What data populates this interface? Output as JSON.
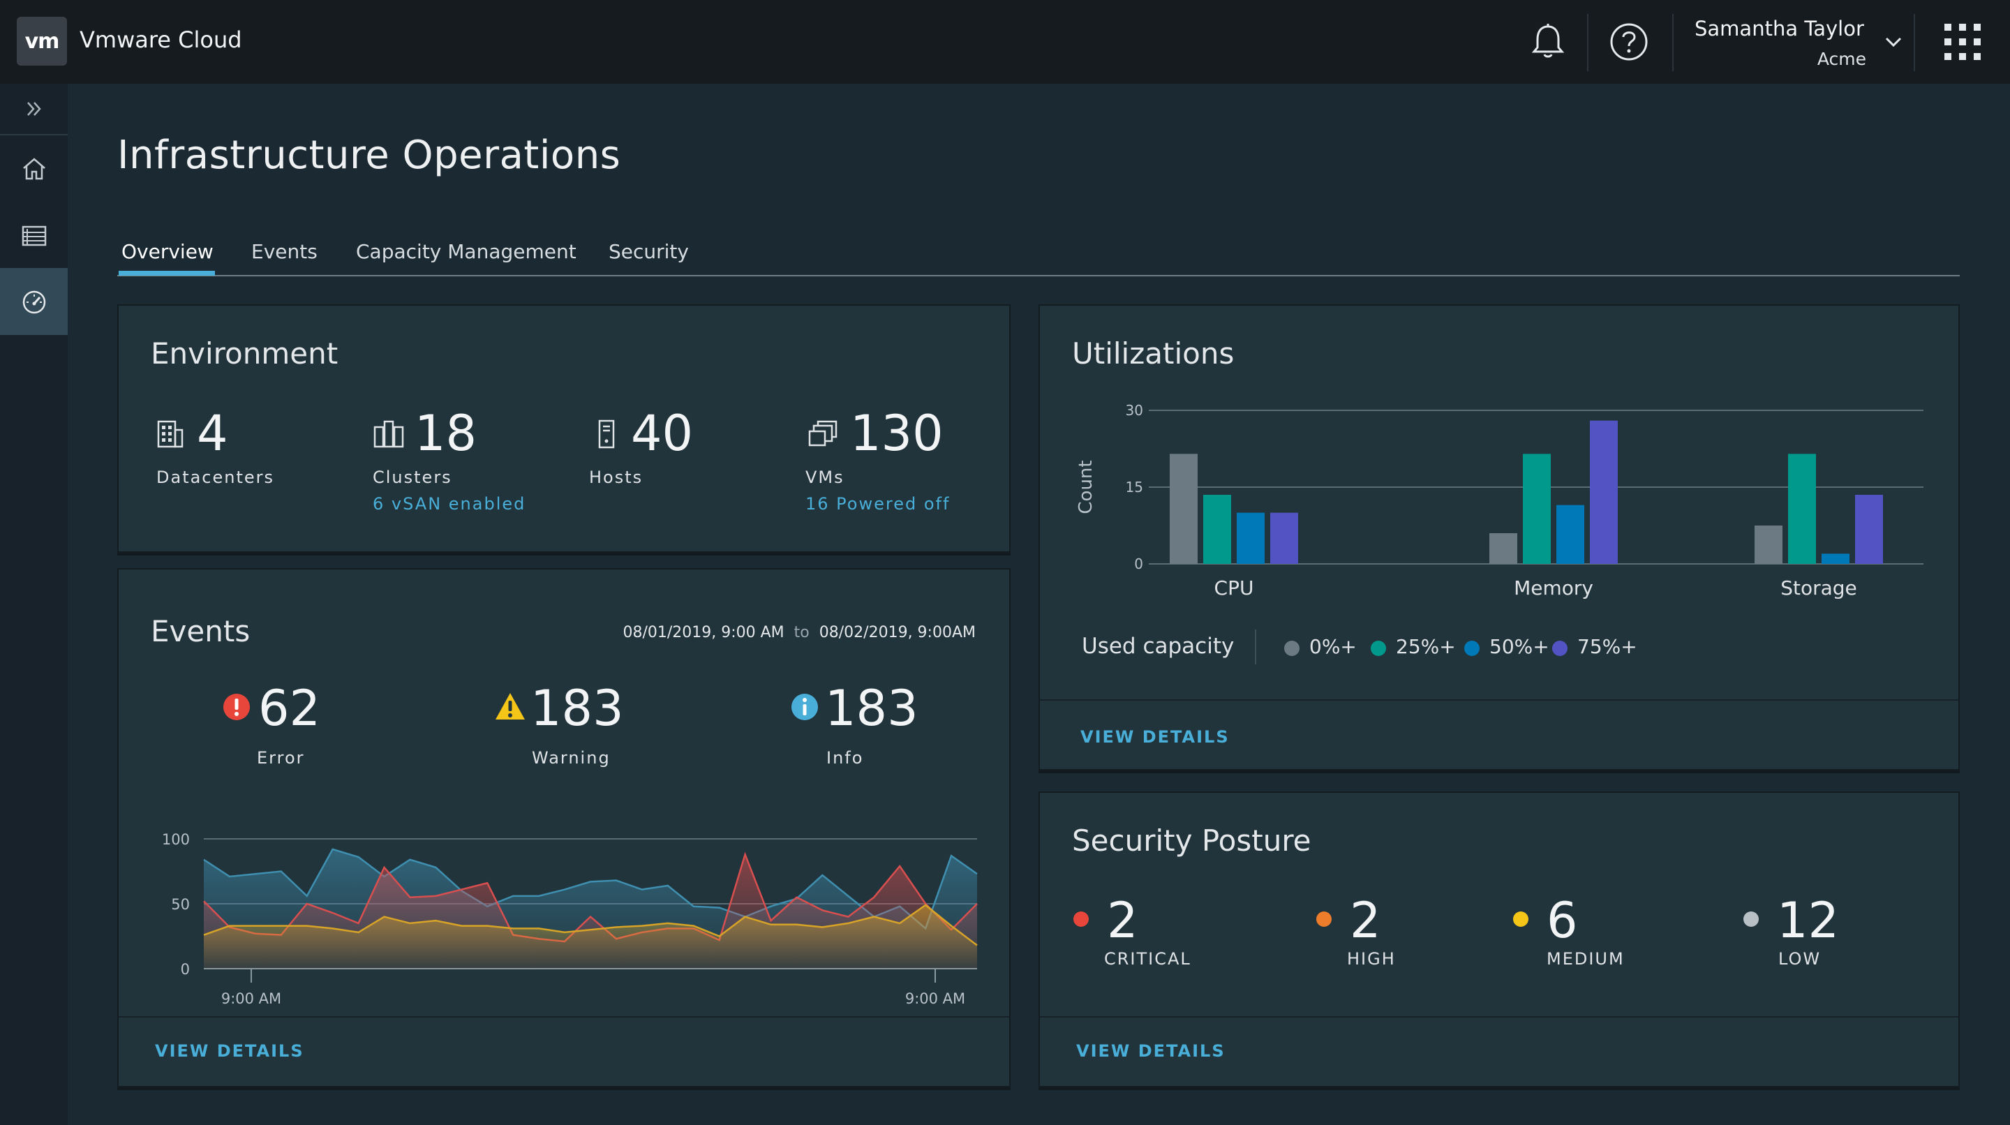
{
  "header": {
    "logo_text": "vm",
    "app_title": "Vmware Cloud",
    "user_name": "Samantha Taylor",
    "user_org": "Acme",
    "icons": [
      "bell-icon",
      "help-icon",
      "chevron-down-icon",
      "app-grid-icon"
    ]
  },
  "sidebar": {
    "items": [
      {
        "icon": "expand-icon"
      },
      {
        "icon": "home-icon"
      },
      {
        "icon": "list-icon"
      },
      {
        "icon": "dashboard-icon",
        "active": true
      }
    ]
  },
  "page": {
    "title": "Infrastructure Operations",
    "tabs": [
      {
        "label": "Overview",
        "active": true
      },
      {
        "label": "Events"
      },
      {
        "label": "Capacity Management"
      },
      {
        "label": "Security"
      }
    ]
  },
  "environment": {
    "title": "Environment",
    "stats": [
      {
        "icon": "datacenter-icon",
        "value": "4",
        "label": "Datacenters",
        "sub": ""
      },
      {
        "icon": "cluster-icon",
        "value": "18",
        "label": "Clusters",
        "sub": "6 vSAN enabled"
      },
      {
        "icon": "host-icon",
        "value": "40",
        "label": "Hosts",
        "sub": ""
      },
      {
        "icon": "vm-icon",
        "value": "130",
        "label": "VMs",
        "sub": "16 Powered off"
      }
    ]
  },
  "events": {
    "title": "Events",
    "range_start": "08/01/2019, 9:00 AM",
    "range_sep": "to",
    "range_end": "08/02/2019, 9:00AM",
    "stats": [
      {
        "icon": "error-icon",
        "value": "62",
        "label": "Error",
        "color": "#e8463a"
      },
      {
        "icon": "warning-icon",
        "value": "183",
        "label": "Warning",
        "color": "#f5c518"
      },
      {
        "icon": "info-icon",
        "value": "183",
        "label": "Info",
        "color": "#49afd9"
      }
    ],
    "view_details": "VIEW DETAILS"
  },
  "chart_data": [
    {
      "type": "area",
      "title": "",
      "ylim": [
        0,
        100
      ],
      "yticks": [
        "0",
        "50",
        "100"
      ],
      "xticks": [
        "9:00 AM",
        "9:00 AM"
      ],
      "series": [
        {
          "color": "#3f8fb0",
          "values": [
            84,
            71,
            73,
            75,
            56,
            92,
            86,
            71,
            84,
            78,
            60,
            48,
            56,
            56,
            61,
            67,
            68,
            61,
            64,
            48,
            47,
            40,
            48,
            54,
            72,
            56,
            40,
            48,
            31,
            87,
            73
          ]
        },
        {
          "color": "#d94f4f",
          "values": [
            52,
            32,
            27,
            26,
            50,
            43,
            35,
            78,
            55,
            56,
            61,
            66,
            26,
            23,
            21,
            40,
            23,
            28,
            31,
            31,
            22,
            88,
            37,
            55,
            45,
            40,
            55,
            79,
            50,
            30,
            50
          ]
        },
        {
          "color": "#d8a427",
          "values": [
            26,
            33,
            33,
            33,
            33,
            31,
            28,
            40,
            35,
            37,
            33,
            33,
            31,
            31,
            28,
            30,
            32,
            33,
            35,
            33,
            25,
            40,
            34,
            34,
            32,
            35,
            40,
            35,
            49,
            33,
            18
          ]
        }
      ]
    },
    {
      "type": "bar",
      "title": "Utilizations",
      "ylabel": "Count",
      "ylim": [
        0,
        30
      ],
      "yticks": [
        "0",
        "15",
        "30"
      ],
      "categories": [
        "CPU",
        "Memory",
        "Storage"
      ],
      "legend_title": "Used capacity",
      "series": [
        {
          "name": "0%+",
          "color": "#6c7a84",
          "values": [
            21.5,
            6,
            7.5
          ]
        },
        {
          "name": "25%+",
          "color": "#00998c",
          "values": [
            13.5,
            21.5,
            21.5
          ]
        },
        {
          "name": "50%+",
          "color": "#0079b8",
          "values": [
            10,
            11.5,
            2
          ]
        },
        {
          "name": "75%+",
          "color": "#5453c4",
          "values": [
            10,
            28,
            13.5
          ]
        }
      ]
    }
  ],
  "utilizations": {
    "title": "Utilizations",
    "view_details": "VIEW DETAILS"
  },
  "security": {
    "title": "Security Posture",
    "stats": [
      {
        "value": "2",
        "label": "CRITICAL",
        "color": "#e8463a"
      },
      {
        "value": "2",
        "label": "HIGH",
        "color": "#ee7d2b"
      },
      {
        "value": "6",
        "label": "MEDIUM",
        "color": "#f5c518"
      },
      {
        "value": "12",
        "label": "LOW",
        "color": "#b9c0c6"
      }
    ],
    "view_details": "VIEW DETAILS"
  }
}
